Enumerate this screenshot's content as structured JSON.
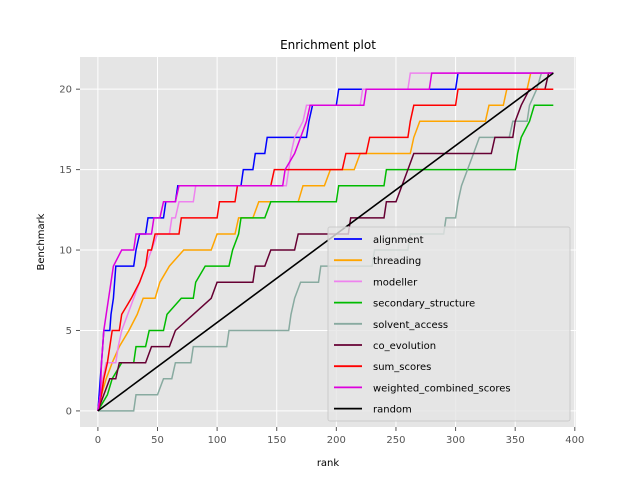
{
  "chart_data": {
    "type": "line",
    "title": "Enrichment plot",
    "xlabel": "rank",
    "ylabel": "Benchmark",
    "xlim": [
      -15,
      401
    ],
    "ylim": [
      -1,
      22
    ],
    "xticks": [
      0,
      50,
      100,
      150,
      200,
      250,
      300,
      350,
      400
    ],
    "yticks": [
      0,
      5,
      10,
      15,
      20
    ],
    "grid": true,
    "legend_position": "lower-right",
    "series": [
      {
        "name": "alignment",
        "color": "#0000ff",
        "points": [
          [
            0,
            0
          ],
          [
            1,
            1
          ],
          [
            2,
            2
          ],
          [
            3,
            3
          ],
          [
            4,
            4
          ],
          [
            5,
            5
          ],
          [
            10,
            5
          ],
          [
            11,
            6
          ],
          [
            13,
            7
          ],
          [
            14,
            8
          ],
          [
            15,
            9
          ],
          [
            30,
            9
          ],
          [
            32,
            10
          ],
          [
            35,
            11
          ],
          [
            40,
            11
          ],
          [
            42,
            12
          ],
          [
            55,
            12
          ],
          [
            57,
            13
          ],
          [
            65,
            13
          ],
          [
            67,
            14
          ],
          [
            120,
            14
          ],
          [
            122,
            15
          ],
          [
            130,
            15
          ],
          [
            132,
            16
          ],
          [
            140,
            16
          ],
          [
            142,
            17
          ],
          [
            175,
            17
          ],
          [
            177,
            18
          ],
          [
            180,
            19
          ],
          [
            200,
            19
          ],
          [
            202,
            20
          ],
          [
            300,
            20
          ],
          [
            302,
            21
          ],
          [
            382,
            21
          ]
        ]
      },
      {
        "name": "threading",
        "color": "#ffa500",
        "points": [
          [
            0,
            0
          ],
          [
            3,
            1
          ],
          [
            7,
            2
          ],
          [
            12,
            3
          ],
          [
            18,
            4
          ],
          [
            26,
            5
          ],
          [
            33,
            6
          ],
          [
            38,
            7
          ],
          [
            48,
            7
          ],
          [
            52,
            8
          ],
          [
            60,
            9
          ],
          [
            72,
            10
          ],
          [
            95,
            10
          ],
          [
            100,
            11
          ],
          [
            115,
            11
          ],
          [
            118,
            12
          ],
          [
            130,
            12
          ],
          [
            135,
            13
          ],
          [
            168,
            13
          ],
          [
            172,
            14
          ],
          [
            190,
            14
          ],
          [
            195,
            15
          ],
          [
            215,
            15
          ],
          [
            220,
            16
          ],
          [
            262,
            16
          ],
          [
            265,
            17
          ],
          [
            270,
            18
          ],
          [
            325,
            18
          ],
          [
            328,
            19
          ],
          [
            340,
            19
          ],
          [
            343,
            20
          ],
          [
            360,
            20
          ],
          [
            363,
            21
          ],
          [
            382,
            21
          ]
        ]
      },
      {
        "name": "modeller",
        "color": "#ee82ee",
        "points": [
          [
            0,
            0
          ],
          [
            2,
            1
          ],
          [
            4,
            2
          ],
          [
            7,
            3
          ],
          [
            15,
            3
          ],
          [
            17,
            4
          ],
          [
            20,
            5
          ],
          [
            25,
            6
          ],
          [
            30,
            7
          ],
          [
            35,
            8
          ],
          [
            40,
            9
          ],
          [
            45,
            10
          ],
          [
            50,
            11
          ],
          [
            60,
            11
          ],
          [
            62,
            12
          ],
          [
            65,
            12
          ],
          [
            68,
            13
          ],
          [
            80,
            13
          ],
          [
            82,
            14
          ],
          [
            158,
            14
          ],
          [
            160,
            15
          ],
          [
            162,
            16
          ],
          [
            165,
            17
          ],
          [
            172,
            18
          ],
          [
            175,
            19
          ],
          [
            220,
            19
          ],
          [
            222,
            20
          ],
          [
            260,
            20
          ],
          [
            262,
            21
          ],
          [
            382,
            21
          ]
        ]
      },
      {
        "name": "secondary_structure",
        "color": "#00bb00",
        "points": [
          [
            0,
            0
          ],
          [
            8,
            1
          ],
          [
            12,
            2
          ],
          [
            20,
            3
          ],
          [
            30,
            3
          ],
          [
            32,
            4
          ],
          [
            40,
            4
          ],
          [
            43,
            5
          ],
          [
            55,
            5
          ],
          [
            58,
            6
          ],
          [
            70,
            7
          ],
          [
            80,
            7
          ],
          [
            82,
            8
          ],
          [
            90,
            9
          ],
          [
            110,
            9
          ],
          [
            113,
            10
          ],
          [
            118,
            11
          ],
          [
            120,
            12
          ],
          [
            140,
            12
          ],
          [
            145,
            13
          ],
          [
            200,
            13
          ],
          [
            202,
            14
          ],
          [
            240,
            14
          ],
          [
            242,
            15
          ],
          [
            350,
            15
          ],
          [
            352,
            16
          ],
          [
            355,
            17
          ],
          [
            362,
            18
          ],
          [
            366,
            19
          ],
          [
            382,
            19
          ]
        ]
      },
      {
        "name": "solvent_access",
        "color": "#88aaa0",
        "points": [
          [
            0,
            0
          ],
          [
            30,
            0
          ],
          [
            32,
            1
          ],
          [
            50,
            1
          ],
          [
            55,
            2
          ],
          [
            62,
            2
          ],
          [
            65,
            3
          ],
          [
            78,
            3
          ],
          [
            80,
            4
          ],
          [
            108,
            4
          ],
          [
            110,
            5
          ],
          [
            160,
            5
          ],
          [
            162,
            6
          ],
          [
            165,
            7
          ],
          [
            170,
            8
          ],
          [
            185,
            8
          ],
          [
            187,
            9
          ],
          [
            230,
            9
          ],
          [
            232,
            10
          ],
          [
            260,
            10
          ],
          [
            262,
            11
          ],
          [
            290,
            11
          ],
          [
            292,
            12
          ],
          [
            300,
            12
          ],
          [
            302,
            13
          ],
          [
            305,
            14
          ],
          [
            310,
            15
          ],
          [
            315,
            16
          ],
          [
            320,
            17
          ],
          [
            345,
            17
          ],
          [
            348,
            18
          ],
          [
            360,
            18
          ],
          [
            362,
            19
          ],
          [
            368,
            20
          ],
          [
            372,
            21
          ],
          [
            382,
            21
          ]
        ]
      },
      {
        "name": "co_evolution",
        "color": "#660033",
        "points": [
          [
            0,
            0
          ],
          [
            5,
            1
          ],
          [
            10,
            2
          ],
          [
            15,
            2
          ],
          [
            18,
            3
          ],
          [
            40,
            3
          ],
          [
            45,
            4
          ],
          [
            60,
            4
          ],
          [
            65,
            5
          ],
          [
            80,
            6
          ],
          [
            95,
            7
          ],
          [
            100,
            8
          ],
          [
            130,
            8
          ],
          [
            132,
            9
          ],
          [
            140,
            9
          ],
          [
            145,
            10
          ],
          [
            165,
            10
          ],
          [
            168,
            11
          ],
          [
            210,
            11
          ],
          [
            212,
            12
          ],
          [
            240,
            12
          ],
          [
            242,
            13
          ],
          [
            250,
            13
          ],
          [
            255,
            14
          ],
          [
            260,
            15
          ],
          [
            265,
            16
          ],
          [
            330,
            16
          ],
          [
            333,
            17
          ],
          [
            348,
            17
          ],
          [
            350,
            18
          ],
          [
            355,
            19
          ],
          [
            362,
            20
          ],
          [
            375,
            20
          ],
          [
            378,
            21
          ],
          [
            382,
            21
          ]
        ]
      },
      {
        "name": "sum_scores",
        "color": "#ff0000",
        "points": [
          [
            0,
            0
          ],
          [
            3,
            1
          ],
          [
            5,
            2
          ],
          [
            8,
            3
          ],
          [
            10,
            4
          ],
          [
            12,
            5
          ],
          [
            18,
            5
          ],
          [
            20,
            6
          ],
          [
            28,
            7
          ],
          [
            35,
            8
          ],
          [
            40,
            9
          ],
          [
            42,
            10
          ],
          [
            45,
            10
          ],
          [
            48,
            11
          ],
          [
            68,
            11
          ],
          [
            70,
            12
          ],
          [
            100,
            12
          ],
          [
            102,
            13
          ],
          [
            115,
            13
          ],
          [
            117,
            14
          ],
          [
            145,
            14
          ],
          [
            148,
            15
          ],
          [
            205,
            15
          ],
          [
            208,
            16
          ],
          [
            225,
            16
          ],
          [
            228,
            17
          ],
          [
            260,
            17
          ],
          [
            262,
            18
          ],
          [
            265,
            19
          ],
          [
            300,
            19
          ],
          [
            302,
            20
          ],
          [
            382,
            20
          ]
        ]
      },
      {
        "name": "weighted_combined_scores",
        "color": "#dd00dd",
        "points": [
          [
            0,
            0
          ],
          [
            2,
            1
          ],
          [
            3,
            3
          ],
          [
            5,
            5
          ],
          [
            7,
            6
          ],
          [
            9,
            7
          ],
          [
            11,
            8
          ],
          [
            13,
            9
          ],
          [
            20,
            10
          ],
          [
            30,
            10
          ],
          [
            32,
            11
          ],
          [
            45,
            11
          ],
          [
            47,
            12
          ],
          [
            52,
            12
          ],
          [
            55,
            13
          ],
          [
            65,
            13
          ],
          [
            68,
            14
          ],
          [
            155,
            14
          ],
          [
            157,
            15
          ],
          [
            165,
            16
          ],
          [
            170,
            17
          ],
          [
            175,
            18
          ],
          [
            178,
            19
          ],
          [
            223,
            19
          ],
          [
            225,
            20
          ],
          [
            278,
            20
          ],
          [
            280,
            21
          ],
          [
            382,
            21
          ]
        ]
      },
      {
        "name": "random",
        "color": "#000000",
        "points": [
          [
            0,
            0
          ],
          [
            382,
            21
          ]
        ]
      }
    ]
  }
}
